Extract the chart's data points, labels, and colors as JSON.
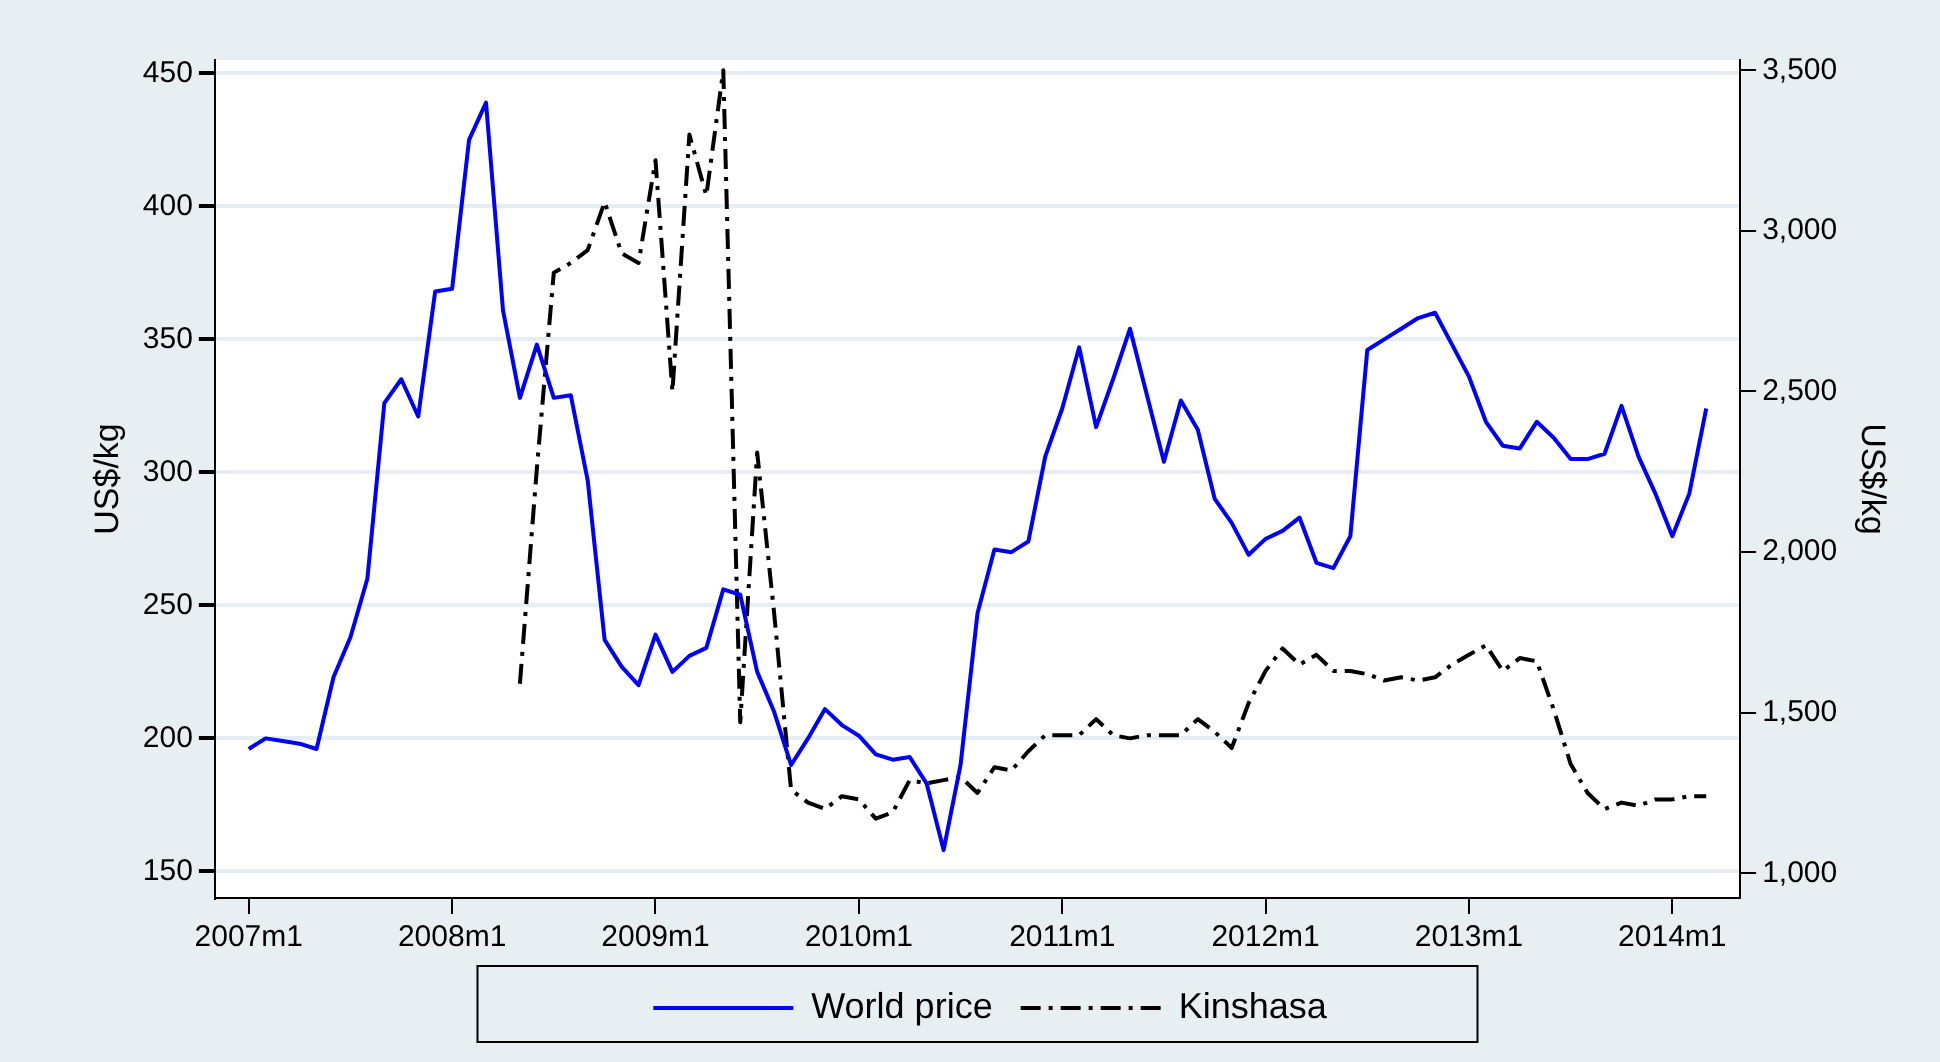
{
  "chart_data": {
    "type": "line",
    "ylabel": "US$/kg",
    "y2label": "US$/kg",
    "categories": [
      "2007m1",
      null,
      null,
      null,
      null,
      null,
      null,
      null,
      null,
      null,
      null,
      null,
      "2008m1",
      null,
      null,
      null,
      null,
      null,
      null,
      null,
      null,
      null,
      null,
      null,
      "2009m1",
      null,
      null,
      null,
      null,
      null,
      null,
      null,
      null,
      null,
      null,
      null,
      "2010m1",
      null,
      null,
      null,
      null,
      null,
      null,
      null,
      null,
      null,
      null,
      null,
      "2011m1",
      null,
      null,
      null,
      null,
      null,
      null,
      null,
      null,
      null,
      null,
      null,
      "2012m1",
      null,
      null,
      null,
      null,
      null,
      null,
      null,
      null,
      null,
      null,
      null,
      "2013m1",
      null,
      null,
      null,
      null,
      null,
      null,
      null,
      null,
      null,
      null,
      null,
      "2014m1",
      null,
      null
    ],
    "ylim": [
      140,
      455
    ],
    "yticks": [
      150,
      200,
      250,
      300,
      350,
      400,
      450
    ],
    "y2lim": [
      923,
      3532
    ],
    "y2ticks": [
      {
        "value": 1000,
        "label": "1,000"
      },
      {
        "value": 1500,
        "label": "1,500"
      },
      {
        "value": 2000,
        "label": "2,000"
      },
      {
        "value": 2500,
        "label": "2,500"
      },
      {
        "value": 3000,
        "label": "3,000"
      },
      {
        "value": 3500,
        "label": "3,500"
      }
    ],
    "grid": "y",
    "legend": "bottom",
    "marker": "none",
    "series": [
      {
        "name": "World price",
        "color": "#0000ff",
        "line_style": "solid",
        "values": [
          196,
          200,
          199,
          198,
          196,
          223,
          238,
          260,
          326,
          335,
          321,
          368,
          369,
          425,
          439,
          361,
          328,
          348,
          328,
          329,
          297,
          237,
          227,
          220,
          239,
          225,
          231,
          234,
          256,
          254,
          225,
          210,
          190,
          200,
          211,
          205,
          201,
          194,
          192,
          193,
          183,
          158,
          190,
          247,
          271,
          270,
          274,
          306,
          324,
          347,
          317,
          335,
          354,
          329,
          304,
          327,
          316,
          290,
          281,
          269,
          275,
          278,
          283,
          266,
          264,
          276,
          346,
          350,
          354,
          358,
          360,
          348,
          336,
          319,
          310,
          309,
          319,
          313,
          305,
          305,
          307,
          325,
          306,
          292,
          276,
          292,
          324
        ]
      },
      {
        "name": "Kinshasa",
        "color": "#000000",
        "line_style": "dashed",
        "axis": "y2",
        "values": [
          null,
          null,
          null,
          null,
          null,
          null,
          null,
          null,
          null,
          null,
          null,
          null,
          null,
          null,
          null,
          null,
          1590,
          2260,
          2870,
          2900,
          2940,
          3090,
          2930,
          2900,
          3220,
          2500,
          3300,
          3110,
          3500,
          1470,
          2310,
          1810,
          1260,
          1220,
          1200,
          1240,
          1230,
          1170,
          1190,
          1290,
          1280,
          1290,
          1300,
          1250,
          1330,
          1320,
          1380,
          1430,
          1430,
          1430,
          1480,
          1430,
          1420,
          1430,
          1430,
          1430,
          1480,
          1440,
          1390,
          1530,
          1630,
          1700,
          1650,
          1680,
          1630,
          1630,
          1620,
          1600,
          1610,
          1600,
          1610,
          1650,
          1680,
          1710,
          1630,
          1670,
          1660,
          1510,
          1340,
          1250,
          1200,
          1220,
          1210,
          1230,
          1230,
          1240,
          1240
        ]
      }
    ]
  }
}
